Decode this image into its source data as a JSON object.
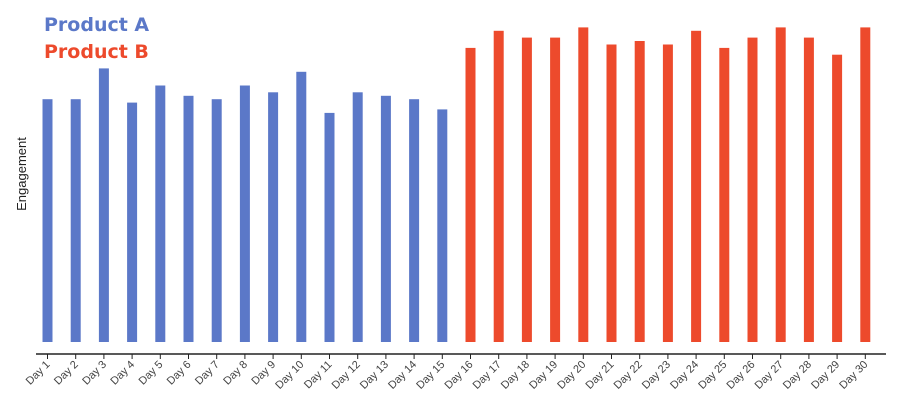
{
  "chart_data": {
    "type": "bar",
    "title": "",
    "xlabel": "",
    "ylabel": "Engagement",
    "ylim": [
      0,
      100
    ],
    "grid": false,
    "legend_position": "top-left",
    "categories": [
      "Day 1",
      "Day 2",
      "Day 3",
      "Day 4",
      "Day 5",
      "Day 6",
      "Day 7",
      "Day 8",
      "Day 9",
      "Day 10",
      "Day 11",
      "Day 12",
      "Day 13",
      "Day 14",
      "Day 15",
      "Day 16",
      "Day 17",
      "Day 18",
      "Day 19",
      "Day 20",
      "Day 21",
      "Day 22",
      "Day 23",
      "Day 24",
      "Day 25",
      "Day 26",
      "Day 27",
      "Day 28",
      "Day 29",
      "Day 30"
    ],
    "series": [
      {
        "name": "Product A",
        "color": "#5b78c8",
        "values": [
          71,
          71,
          80,
          70,
          75,
          72,
          71,
          75,
          73,
          79,
          67,
          73,
          72,
          71,
          68,
          null,
          null,
          null,
          null,
          null,
          null,
          null,
          null,
          null,
          null,
          null,
          null,
          null,
          null,
          null
        ]
      },
      {
        "name": "Product B",
        "color": "#ed4a2c",
        "values": [
          null,
          null,
          null,
          null,
          null,
          null,
          null,
          null,
          null,
          null,
          null,
          null,
          null,
          null,
          null,
          86,
          91,
          89,
          89,
          92,
          87,
          88,
          87,
          91,
          86,
          89,
          92,
          89,
          84,
          92
        ]
      }
    ]
  }
}
